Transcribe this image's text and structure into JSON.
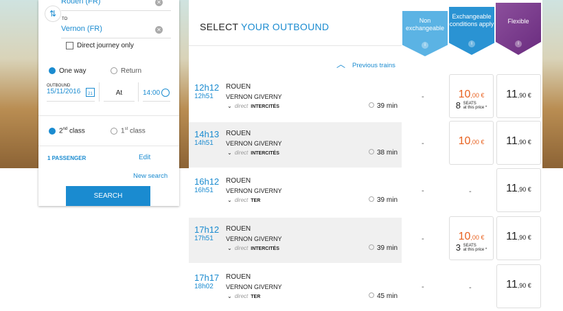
{
  "search": {
    "from": "Rouen (FR)",
    "to_label": "TO",
    "to": "Vernon (FR)",
    "direct_only": "Direct journey only",
    "one_way": "One way",
    "return": "Return",
    "outbound_label": "OUTBOUND",
    "date": "15/11/2016",
    "calendar_day": "21",
    "at": "At",
    "time": "14:00",
    "class2": "2",
    "class2_sup": "nd",
    "class2_suffix": " class",
    "class1": "1",
    "class1_sup": "st",
    "class1_suffix": " class",
    "passengers": "1 PASSENGER",
    "edit": "Edit",
    "new_search": "New search",
    "search_btn": "SEARCH"
  },
  "header": {
    "title_a": "SELECT ",
    "title_b": "YOUR OUTBOUND",
    "previous": "Previous trains"
  },
  "fares": [
    {
      "label": "Non exchangeable",
      "color": "#5bb3e4"
    },
    {
      "label": "Exchangeable conditions apply",
      "color": "#2a93d3"
    },
    {
      "label": "Flexible",
      "color": "#7a3d8c"
    }
  ],
  "accent": "#1a8bd0",
  "price_orange": "#e8611f",
  "trains": [
    {
      "dep": "12h12",
      "arr": "12h51",
      "from": "ROUEN",
      "to": "VERNON GIVERNY",
      "direct": "direct",
      "type": "INTERCITÉS",
      "duration": "39 min",
      "non": "-",
      "exch": "10",
      "exch_c": ",00 €",
      "seats": "8",
      "seats_a": "SEATS",
      "seats_b": "at this price *",
      "flex": "11",
      "flex_c": ",90 €"
    },
    {
      "dep": "14h13",
      "arr": "14h51",
      "from": "ROUEN",
      "to": "VERNON GIVERNY",
      "direct": "direct",
      "type": "INTERCITÉS",
      "duration": "38 min",
      "non": "-",
      "exch": "10",
      "exch_c": ",00 €",
      "flex": "11",
      "flex_c": ",90 €"
    },
    {
      "dep": "16h12",
      "arr": "16h51",
      "from": "ROUEN",
      "to": "VERNON GIVERNY",
      "direct": "direct",
      "type": "TER",
      "duration": "39 min",
      "non": "-",
      "exch_none": "-",
      "flex": "11",
      "flex_c": ",90 €"
    },
    {
      "dep": "17h12",
      "arr": "17h51",
      "from": "ROUEN",
      "to": "VERNON GIVERNY",
      "direct": "direct",
      "type": "INTERCITÉS",
      "duration": "39 min",
      "non": "-",
      "exch": "10",
      "exch_c": ",00 €",
      "seats": "3",
      "seats_a": "SEATS",
      "seats_b": "at this price *",
      "flex": "11",
      "flex_c": ",90 €"
    },
    {
      "dep": "17h17",
      "arr": "18h02",
      "from": "ROUEN",
      "to": "VERNON GIVERNY",
      "direct": "direct",
      "type": "TER",
      "duration": "45 min",
      "non": "-",
      "exch_none": "-",
      "flex": "11",
      "flex_c": ",90 €"
    }
  ]
}
